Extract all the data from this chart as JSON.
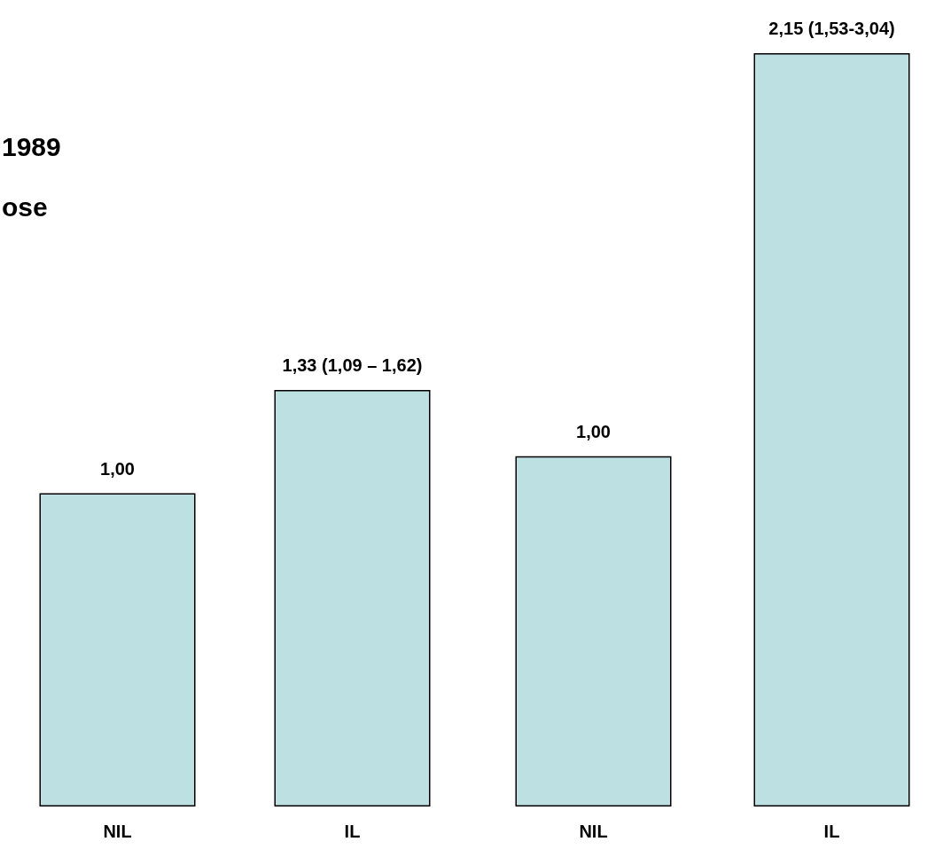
{
  "chart_data": [
    {
      "type": "bar",
      "categories": [
        "NIL",
        "IL"
      ],
      "values": [
        1.0,
        1.33
      ],
      "color": "#bde0e3",
      "value_labels": [
        "1,00",
        "1,33 (1,09 – 1,62)"
      ],
      "tick_labels": "x",
      "grid": false,
      "annotations": [
        "1989",
        "ose"
      ]
    },
    {
      "type": "bar",
      "categories": [
        "NIL",
        "IL"
      ],
      "values": [
        1.0,
        2.15
      ],
      "color": "#bde0e3",
      "value_labels": [
        "1,00",
        "2,15 (1,53-3,04)"
      ],
      "tick_labels": "x",
      "grid": false
    }
  ]
}
